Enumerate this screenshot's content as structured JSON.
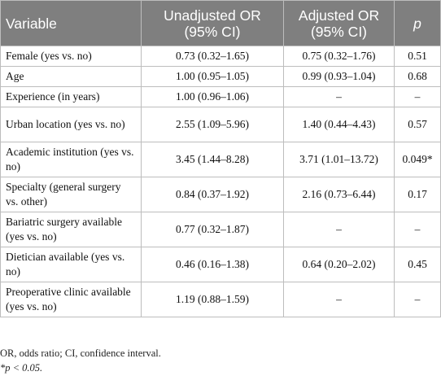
{
  "table": {
    "headers": {
      "variable": "Variable",
      "unadjusted": "Unadjusted OR\n(95% CI)",
      "adjusted": "Adjusted OR\n(95% CI)",
      "p": "p"
    },
    "rows": [
      {
        "variable": "Female (yes vs. no)",
        "unadjusted": "0.73 (0.32–1.65)",
        "adjusted": "0.75 (0.32–1.76)",
        "p": "0.51"
      },
      {
        "variable": "Age",
        "unadjusted": "1.00 (0.95–1.05)",
        "adjusted": "0.99 (0.93–1.04)",
        "p": "0.68"
      },
      {
        "variable": "Experience (in years)",
        "unadjusted": "1.00 (0.96–1.06)",
        "adjusted": "–",
        "p": "–"
      },
      {
        "variable": "Urban location (yes vs. no)",
        "unadjusted": "2.55 (1.09–5.96)",
        "adjusted": "1.40 (0.44–4.43)",
        "p": "0.57"
      },
      {
        "variable": "Academic institution (yes vs. no)",
        "unadjusted": "3.45 (1.44–8.28)",
        "adjusted": "3.71 (1.01–13.72)",
        "p": "0.049*"
      },
      {
        "variable": "Specialty (general surgery vs. other)",
        "unadjusted": "0.84 (0.37–1.92)",
        "adjusted": "2.16 (0.73–6.44)",
        "p": "0.17"
      },
      {
        "variable": "Bariatric surgery available (yes vs. no)",
        "unadjusted": "0.77 (0.32–1.87)",
        "adjusted": "–",
        "p": "–"
      },
      {
        "variable": "Dietician available (yes vs. no)",
        "unadjusted": "0.46 (0.16–1.38)",
        "adjusted": "0.64 (0.20–2.02)",
        "p": "0.45"
      },
      {
        "variable": "Preoperative clinic available (yes vs. no)",
        "unadjusted": "1.19 (0.88–1.59)",
        "adjusted": "–",
        "p": "–"
      }
    ]
  },
  "footnotes": {
    "abbreviations": "OR, odds ratio; CI, confidence interval.",
    "significance": "*p < 0.05."
  }
}
